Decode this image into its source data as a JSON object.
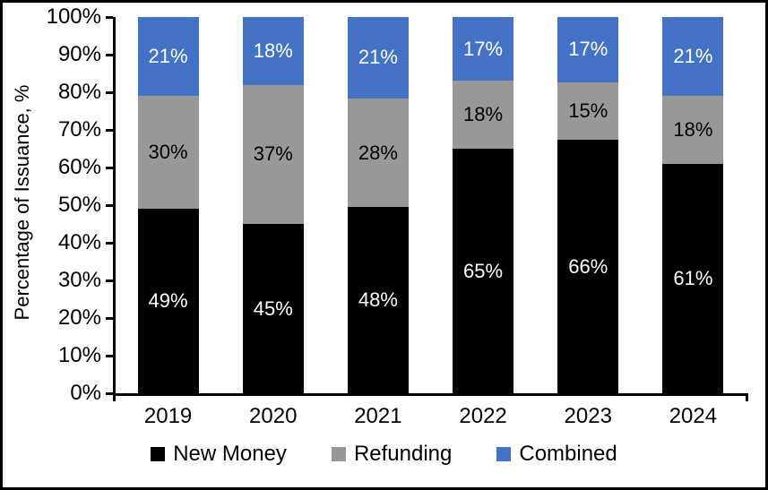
{
  "chart_data": {
    "type": "bar",
    "stacked": true,
    "title": "",
    "xlabel": "",
    "ylabel": "Percentage of Issuance, %",
    "ylim": [
      0,
      100
    ],
    "grid": false,
    "legend_position": "bottom",
    "value_suffix": "%",
    "categories": [
      "2019",
      "2020",
      "2021",
      "2022",
      "2023",
      "2024"
    ],
    "series": [
      {
        "name": "New Money",
        "color": "#000000",
        "label_color": "#ffffff",
        "values": [
          49,
          45,
          48,
          65,
          66,
          61
        ]
      },
      {
        "name": "Refunding",
        "color": "#989898",
        "label_color": "#000000",
        "values": [
          30,
          37,
          28,
          18,
          15,
          18
        ]
      },
      {
        "name": "Combined",
        "color": "#4472C4",
        "label_color": "#ffffff",
        "values": [
          21,
          18,
          21,
          17,
          17,
          21
        ]
      }
    ],
    "y_tick_labels": [
      "0%",
      "10%",
      "20%",
      "30%",
      "40%",
      "50%",
      "60%",
      "70%",
      "80%",
      "90%",
      "100%"
    ],
    "axis_color": "#000000"
  }
}
